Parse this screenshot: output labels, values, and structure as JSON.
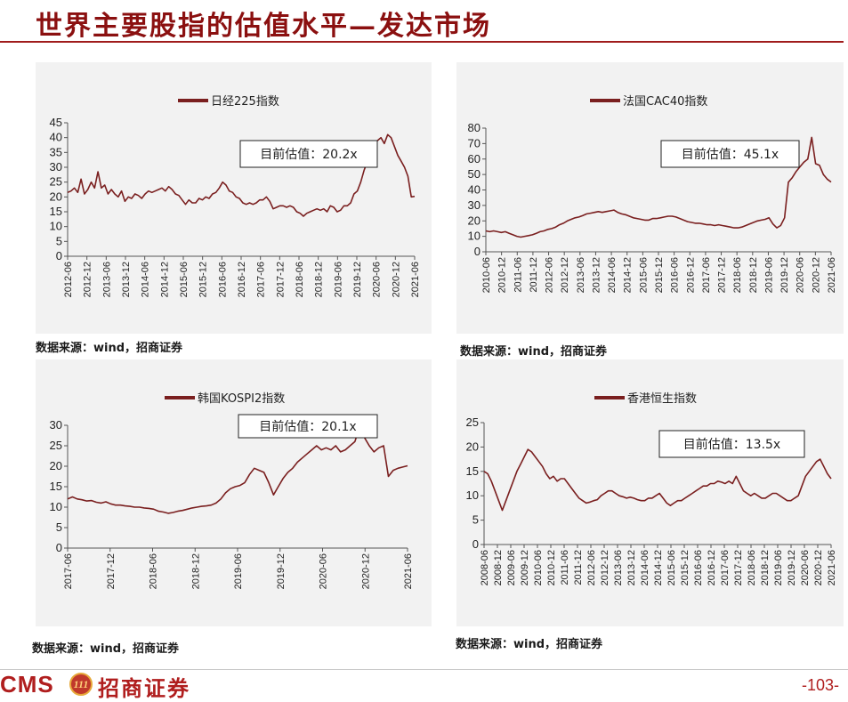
{
  "page": {
    "title": "世界主要股指的估值水平—发达市场",
    "page_number": "-103-",
    "logo_text": "CMS",
    "logo_badge": "111",
    "logo_cn": "招商证券",
    "accent_color": "#8b1010",
    "line_color": "#7a1f1f"
  },
  "chart_data": [
    {
      "type": "line",
      "legend": "日经225指数",
      "annotation": "目前估值：20.2x",
      "source": "数据来源：wind，招商证券",
      "x_labels": [
        "2012-06",
        "2012-12",
        "2013-06",
        "2013-12",
        "2014-06",
        "2014-12",
        "2015-06",
        "2015-12",
        "2016-06",
        "2016-12",
        "2017-06",
        "2017-12",
        "2018-06",
        "2018-12",
        "2019-06",
        "2019-12",
        "2020-06",
        "2020-12",
        "2021-06"
      ],
      "y_ticks": [
        0,
        5,
        10,
        15,
        20,
        25,
        30,
        35,
        40,
        45
      ],
      "ylim": [
        0,
        45
      ],
      "series": [
        {
          "values": [
            21.5,
            22,
            23,
            21.5,
            26,
            21,
            22.5,
            25,
            23,
            28.5,
            23,
            24,
            21,
            22.5,
            21,
            20,
            22,
            18.5,
            20,
            19.5,
            21,
            20.5,
            19.5,
            21,
            22,
            21.5,
            22,
            22.5,
            23,
            22,
            23.5,
            22.5,
            21,
            20.5,
            19,
            17.5,
            19,
            18,
            18,
            19.5,
            19,
            20,
            19.5,
            21,
            21.5,
            23,
            25,
            24,
            22,
            21.5,
            20,
            19.5,
            18,
            17.5,
            18,
            17.5,
            18,
            19,
            19,
            20,
            18.5,
            16,
            16.5,
            17,
            17,
            16.5,
            17,
            16.5,
            15,
            14.5,
            13.5,
            14.5,
            15,
            15.5,
            16,
            15.5,
            16,
            15,
            17,
            16.5,
            15,
            15.5,
            17,
            17,
            18,
            21,
            22,
            25,
            29,
            32,
            36,
            38,
            39,
            40,
            38,
            41,
            40,
            37,
            34,
            32,
            30,
            27,
            20,
            20.2
          ]
        }
      ]
    },
    {
      "type": "line",
      "legend": "法国CAC40指数",
      "annotation": "目前估值：45.1x",
      "source": "数据来源：wind，招商证券",
      "x_labels": [
        "2010-06",
        "2010-12",
        "2011-06",
        "2011-12",
        "2012-06",
        "2012-12",
        "2013-06",
        "2013-12",
        "2014-06",
        "2014-12",
        "2015-06",
        "2015-12",
        "2016-06",
        "2016-12",
        "2017-06",
        "2017-12",
        "2018-06",
        "2018-12",
        "2019-06",
        "2019-12",
        "2020-06",
        "2020-12",
        "2021-06"
      ],
      "y_ticks": [
        0,
        10,
        20,
        30,
        40,
        50,
        60,
        70,
        80
      ],
      "ylim": [
        0,
        80
      ],
      "series": [
        {
          "values": [
            13.5,
            13,
            13.5,
            13,
            12.5,
            13,
            12,
            11,
            10,
            9.5,
            10,
            10.5,
            11,
            12,
            13,
            13.5,
            14.5,
            15,
            16,
            17.5,
            18.5,
            20,
            21,
            22,
            22.5,
            23.5,
            24.5,
            25,
            25.5,
            26,
            25.5,
            26,
            26.5,
            27,
            25.5,
            24.5,
            24,
            23,
            22,
            21.5,
            21,
            20.5,
            20.5,
            21.5,
            21.5,
            22,
            22.5,
            23,
            23,
            22.5,
            21.5,
            20.5,
            19.5,
            19,
            18.5,
            18.5,
            18,
            17.5,
            17.5,
            17,
            17.5,
            17,
            16.5,
            16,
            15.5,
            15.5,
            16,
            17,
            18,
            19,
            20,
            20.5,
            21,
            22,
            18,
            15.5,
            17,
            22,
            45,
            48,
            52,
            55,
            58,
            60,
            74,
            57,
            56,
            50,
            47,
            45.1
          ]
        }
      ]
    },
    {
      "type": "line",
      "legend": "韩国KOSPI2指数",
      "annotation": "目前估值：20.1x",
      "source": "数据来源：wind，招商证券",
      "x_labels": [
        "2017-06",
        "2017-12",
        "2018-06",
        "2018-12",
        "2019-06",
        "2019-12",
        "2020-06",
        "2020-12",
        "2021-06"
      ],
      "y_ticks": [
        0,
        5,
        10,
        15,
        20,
        25,
        30
      ],
      "ylim": [
        0,
        30
      ],
      "series": [
        {
          "values": [
            12,
            12.5,
            12,
            11.8,
            11.5,
            11.6,
            11.2,
            11,
            11.3,
            10.8,
            10.5,
            10.5,
            10.3,
            10.2,
            10,
            10,
            9.8,
            9.7,
            9.5,
            9,
            8.8,
            8.5,
            8.7,
            9,
            9.2,
            9.5,
            9.8,
            10,
            10.2,
            10.3,
            10.5,
            11,
            12,
            13.5,
            14.5,
            15,
            15.3,
            16,
            18,
            19.5,
            19,
            18.5,
            16,
            13,
            15,
            17,
            18.5,
            19.5,
            21,
            22,
            23,
            24,
            25,
            24,
            24.5,
            24,
            25,
            23.5,
            24,
            25,
            26,
            29.5,
            27,
            25,
            23.5,
            24.5,
            25,
            17.5,
            19,
            19.5,
            19.8,
            20.1
          ]
        }
      ]
    },
    {
      "type": "line",
      "legend": "香港恒生指数",
      "annotation": "目前估值：13.5x",
      "source": "数据来源：wind，招商证券",
      "x_labels": [
        "2008-06",
        "2008-12",
        "2009-06",
        "2009-12",
        "2010-06",
        "2010-12",
        "2011-06",
        "2011-12",
        "2012-06",
        "2012-12",
        "2013-06",
        "2013-12",
        "2014-06",
        "2014-12",
        "2015-06",
        "2015-12",
        "2016-06",
        "2016-12",
        "2017-06",
        "2017-12",
        "2018-06",
        "2018-12",
        "2019-06",
        "2019-12",
        "2020-06",
        "2020-12",
        "2021-06"
      ],
      "y_ticks": [
        0,
        5,
        10,
        15,
        20,
        25
      ],
      "ylim": [
        0,
        25
      ],
      "series": [
        {
          "values": [
            15,
            14.5,
            13,
            11,
            9,
            7,
            9,
            11,
            13,
            15,
            16.5,
            18,
            19.5,
            19,
            18,
            17,
            16,
            14.5,
            13.5,
            14,
            13,
            13.5,
            13.5,
            12.5,
            11.5,
            10.5,
            9.5,
            9,
            8.5,
            8.7,
            9,
            9.2,
            10,
            10.5,
            11,
            11,
            10.5,
            10,
            9.8,
            9.5,
            9.7,
            9.5,
            9.2,
            9,
            9,
            9.5,
            9.5,
            10,
            10.5,
            9.5,
            8.5,
            8,
            8.5,
            9,
            9,
            9.5,
            10,
            10.5,
            11,
            11.5,
            12,
            12,
            12.5,
            12.5,
            13,
            12.8,
            12.5,
            13,
            12.5,
            14,
            12.5,
            11,
            10.5,
            10,
            10.5,
            10,
            9.5,
            9.5,
            10,
            10.5,
            10.5,
            10,
            9.5,
            9,
            9,
            9.5,
            10,
            12,
            14,
            15,
            16,
            17,
            17.5,
            16,
            14.5,
            13.5
          ]
        }
      ]
    }
  ]
}
